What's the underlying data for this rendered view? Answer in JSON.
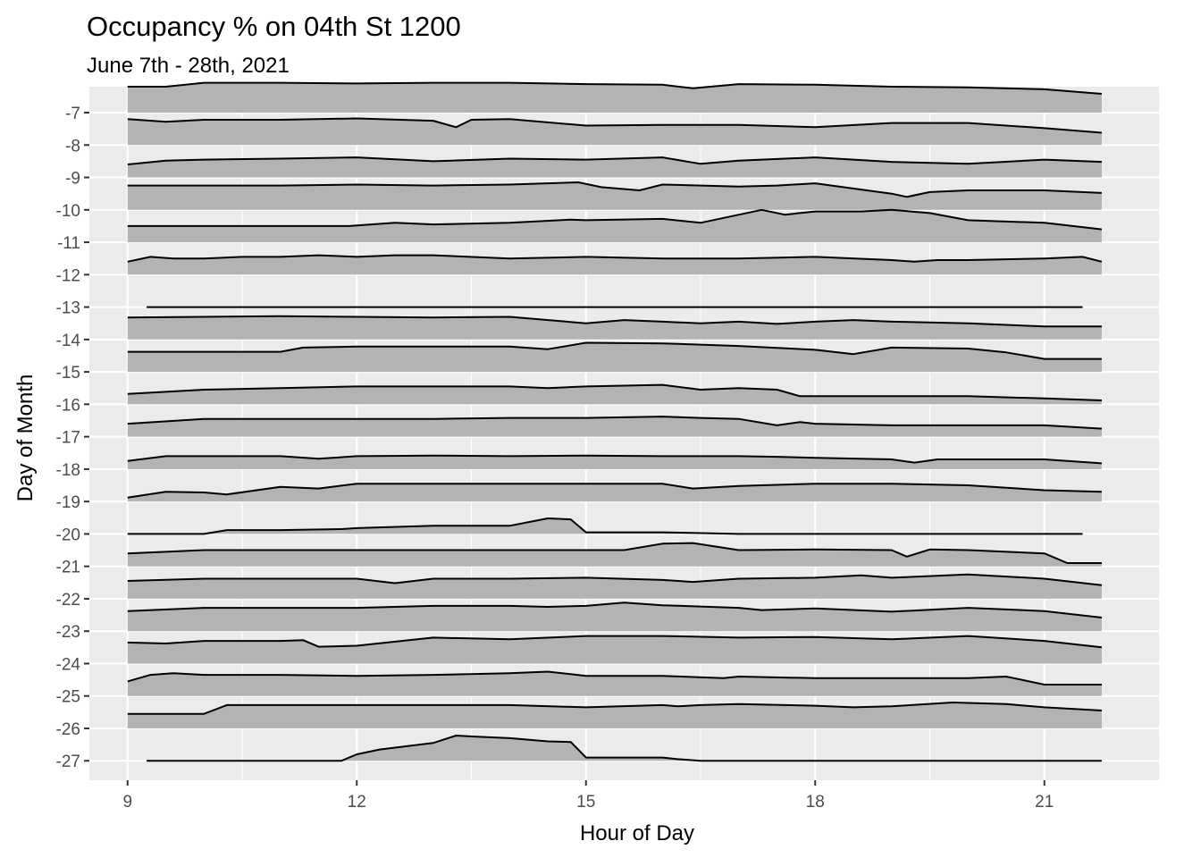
{
  "chart_data": {
    "type": "ridgeline",
    "title": "Occupancy % on 04th St 1200",
    "subtitle": "June 7th - 28th, 2021",
    "xlabel": "Hour of Day",
    "ylabel": "Day of Month",
    "xlim": [
      8.5,
      22.5
    ],
    "ylim": [
      -27.6,
      -6.2
    ],
    "x_ticks": [
      9,
      12,
      15,
      18,
      21
    ],
    "y_ticks": [
      -7,
      -8,
      -9,
      -10,
      -11,
      -12,
      -13,
      -14,
      -15,
      -16,
      -17,
      -18,
      -19,
      -20,
      -21,
      -22,
      -23,
      -24,
      -25,
      -26,
      -27
    ],
    "ridge_height_units": 1.0,
    "background": "#ebebeb",
    "grid_color": "#ffffff",
    "fill_color": "#b3b3b3",
    "line_color": "#000000",
    "series": [
      {
        "day": -7,
        "x": [
          9,
          9.5,
          10,
          11,
          12,
          13,
          14,
          15,
          16,
          16.4,
          17,
          18,
          19,
          20,
          21,
          21.75
        ],
        "occupancy": [
          80,
          80,
          92,
          92,
          90,
          92,
          92,
          88,
          86,
          75,
          88,
          86,
          80,
          78,
          72,
          58
        ]
      },
      {
        "day": -8,
        "x": [
          9,
          9.5,
          10,
          11,
          12,
          13,
          13.3,
          13.5,
          14,
          15,
          16,
          17,
          18,
          19,
          20,
          21,
          21.75
        ],
        "occupancy": [
          80,
          72,
          78,
          78,
          82,
          75,
          55,
          78,
          80,
          60,
          62,
          62,
          55,
          68,
          68,
          52,
          38
        ]
      },
      {
        "day": -9,
        "x": [
          9,
          9.5,
          10,
          11,
          12,
          13,
          14,
          15,
          16,
          16.5,
          17,
          18,
          19,
          20,
          21,
          21.75
        ],
        "occupancy": [
          40,
          52,
          55,
          58,
          62,
          50,
          58,
          55,
          62,
          42,
          52,
          62,
          48,
          42,
          55,
          48
        ]
      },
      {
        "day": -10,
        "x": [
          9,
          10,
          11,
          12,
          13,
          14,
          14.9,
          15.2,
          15.7,
          16,
          17,
          17.5,
          18,
          19,
          19.2,
          19.5,
          20,
          21,
          21.75
        ],
        "occupancy": [
          75,
          75,
          75,
          78,
          75,
          78,
          85,
          70,
          60,
          78,
          72,
          75,
          82,
          50,
          40,
          55,
          60,
          60,
          52
        ]
      },
      {
        "day": -11,
        "x": [
          9,
          10,
          11,
          11.9,
          12.5,
          13,
          14,
          14.8,
          15,
          16,
          16.5,
          17.3,
          17.6,
          18,
          18.6,
          19,
          19.5,
          20,
          21,
          21.75
        ],
        "occupancy": [
          50,
          50,
          50,
          50,
          60,
          55,
          60,
          70,
          68,
          72,
          60,
          100,
          85,
          95,
          95,
          100,
          90,
          68,
          60,
          40
        ]
      },
      {
        "day": -12,
        "x": [
          9,
          9.3,
          9.6,
          10,
          10.5,
          11,
          11.5,
          12,
          12.5,
          13,
          14,
          15,
          16,
          17,
          18,
          19,
          19.3,
          19.6,
          20,
          21,
          21.5,
          21.75
        ],
        "occupancy": [
          40,
          55,
          50,
          50,
          55,
          55,
          60,
          55,
          60,
          60,
          50,
          55,
          50,
          50,
          55,
          45,
          40,
          45,
          45,
          50,
          55,
          40
        ]
      },
      {
        "day": -13,
        "x": [
          9.25,
          21.5
        ],
        "occupancy": [
          0,
          0
        ]
      },
      {
        "day": -14,
        "x": [
          9,
          10,
          11,
          12,
          13,
          14,
          15,
          15.5,
          16,
          16.5,
          17,
          17.5,
          18,
          18.5,
          19,
          20,
          21,
          21.75
        ],
        "occupancy": [
          68,
          70,
          72,
          70,
          68,
          70,
          50,
          60,
          55,
          50,
          55,
          48,
          55,
          60,
          55,
          50,
          40,
          40
        ]
      },
      {
        "day": -15,
        "x": [
          9,
          10,
          11,
          11.3,
          12,
          13,
          14,
          14.5,
          15,
          16,
          17,
          18,
          18.5,
          19,
          20,
          20.5,
          21,
          21.75
        ],
        "occupancy": [
          62,
          62,
          62,
          75,
          78,
          78,
          78,
          70,
          90,
          88,
          80,
          68,
          55,
          75,
          72,
          60,
          40,
          40
        ]
      },
      {
        "day": -16,
        "x": [
          9,
          10,
          11,
          12,
          13,
          14,
          14.5,
          15,
          16,
          16.5,
          17,
          17.5,
          17.8,
          18,
          19,
          20,
          21,
          21.75
        ],
        "occupancy": [
          32,
          45,
          50,
          55,
          55,
          55,
          50,
          55,
          60,
          45,
          50,
          45,
          25,
          25,
          25,
          25,
          18,
          12
        ]
      },
      {
        "day": -17,
        "x": [
          9,
          10,
          11,
          12,
          13,
          14,
          15,
          16,
          16.5,
          17,
          17.5,
          17.8,
          18,
          19,
          20,
          21,
          21.75
        ],
        "occupancy": [
          40,
          55,
          55,
          55,
          55,
          58,
          58,
          62,
          58,
          55,
          35,
          45,
          40,
          35,
          35,
          35,
          25
        ]
      },
      {
        "day": -18,
        "x": [
          9,
          9.5,
          10,
          11,
          11.5,
          12,
          13,
          14,
          15,
          16,
          17,
          17.5,
          18,
          19,
          19.3,
          19.6,
          20,
          21,
          21.75
        ],
        "occupancy": [
          25,
          40,
          40,
          40,
          32,
          40,
          42,
          40,
          42,
          40,
          40,
          38,
          35,
          30,
          20,
          30,
          30,
          30,
          18
        ]
      },
      {
        "day": -19,
        "x": [
          9,
          9.5,
          10,
          10.3,
          11,
          11.5,
          12,
          13,
          14,
          15,
          16,
          16.4,
          17,
          18,
          19,
          20,
          21,
          21.75
        ],
        "occupancy": [
          12,
          30,
          28,
          22,
          45,
          40,
          55,
          55,
          55,
          55,
          55,
          40,
          48,
          55,
          55,
          50,
          35,
          30
        ]
      },
      {
        "day": -20,
        "x": [
          9,
          10,
          10.3,
          11,
          11.8,
          12,
          13,
          14,
          14.5,
          14.8,
          15,
          16,
          17,
          18,
          19,
          20,
          21,
          21.5
        ],
        "occupancy": [
          0,
          0,
          12,
          12,
          15,
          18,
          25,
          25,
          48,
          45,
          5,
          5,
          0,
          0,
          0,
          0,
          0,
          0
        ]
      },
      {
        "day": -21,
        "x": [
          9,
          10,
          11,
          12,
          13,
          14,
          15,
          15.5,
          16,
          16.4,
          17,
          18,
          19,
          19.2,
          19.5,
          20,
          21,
          21.3,
          21.75
        ],
        "occupancy": [
          40,
          50,
          50,
          50,
          50,
          50,
          50,
          50,
          70,
          72,
          50,
          52,
          50,
          30,
          52,
          50,
          40,
          10,
          10
        ]
      },
      {
        "day": -22,
        "x": [
          9,
          10,
          11,
          12,
          12.5,
          13,
          14,
          15,
          16,
          16.4,
          17,
          18,
          18.6,
          19,
          20,
          21,
          21.75
        ],
        "occupancy": [
          55,
          62,
          62,
          62,
          48,
          62,
          62,
          65,
          58,
          52,
          62,
          65,
          72,
          65,
          75,
          62,
          42
        ]
      },
      {
        "day": -23,
        "x": [
          9,
          10,
          11,
          12,
          13,
          14,
          14.5,
          15,
          15.5,
          16,
          17,
          17.3,
          18,
          19,
          20,
          21,
          21.75
        ],
        "occupancy": [
          62,
          72,
          72,
          72,
          78,
          78,
          75,
          78,
          88,
          80,
          72,
          65,
          70,
          60,
          72,
          62,
          42
        ]
      },
      {
        "day": -24,
        "x": [
          9,
          9.5,
          10,
          11,
          11.3,
          11.5,
          12,
          13,
          14,
          15,
          16,
          17,
          18,
          19,
          20,
          21,
          21.75
        ],
        "occupancy": [
          65,
          62,
          70,
          70,
          72,
          52,
          55,
          80,
          75,
          85,
          85,
          80,
          82,
          75,
          85,
          70,
          50
        ]
      },
      {
        "day": -25,
        "x": [
          9,
          9.3,
          9.6,
          10,
          11,
          12,
          13,
          14,
          14.5,
          15,
          16,
          16.8,
          17,
          18,
          19,
          20,
          20.5,
          21,
          21.75
        ],
        "occupancy": [
          45,
          65,
          70,
          65,
          65,
          62,
          65,
          70,
          75,
          62,
          62,
          55,
          60,
          55,
          55,
          55,
          60,
          35,
          35
        ]
      },
      {
        "day": -26,
        "x": [
          9,
          9.5,
          10,
          10.3,
          11,
          12,
          13,
          14,
          15,
          16,
          16.2,
          16.5,
          17,
          18,
          18.5,
          19,
          19.8,
          20.5,
          21,
          21.75
        ],
        "occupancy": [
          45,
          45,
          45,
          72,
          72,
          72,
          72,
          72,
          65,
          72,
          68,
          72,
          75,
          70,
          65,
          68,
          80,
          75,
          65,
          55
        ]
      },
      {
        "day": -27,
        "x": [
          9.25,
          11,
          11.8,
          12,
          12.3,
          13,
          13.3,
          13.5,
          14,
          14.5,
          14.8,
          15,
          16,
          16.2,
          16.5,
          17,
          18,
          19,
          20,
          21,
          21.75
        ],
        "occupancy": [
          0,
          0,
          0,
          20,
          35,
          55,
          78,
          75,
          70,
          60,
          58,
          10,
          10,
          5,
          0,
          0,
          0,
          0,
          0,
          0,
          0
        ]
      }
    ]
  }
}
